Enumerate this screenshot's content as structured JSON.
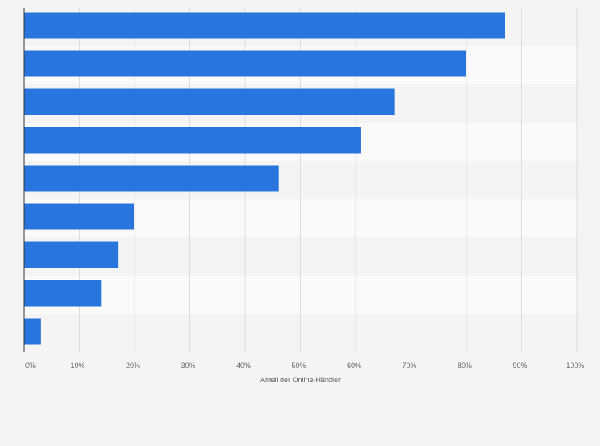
{
  "chart_data": {
    "type": "bar",
    "orientation": "horizontal",
    "categories": [
      "",
      "",
      "",
      "",
      "",
      "",
      "",
      "",
      ""
    ],
    "values": [
      87,
      80,
      67,
      61,
      46,
      20,
      17,
      14,
      3
    ],
    "unit": "%",
    "title": "",
    "xlabel": "Anteil der Online-Händler",
    "ylabel": "",
    "xlim": [
      0,
      100
    ],
    "xticks": [
      0,
      10,
      20,
      30,
      40,
      50,
      60,
      70,
      80,
      90,
      100
    ],
    "xtick_labels": [
      "0%",
      "10%",
      "20%",
      "30%",
      "40%",
      "50%",
      "60%",
      "70%",
      "80%",
      "90%",
      "100%"
    ],
    "grid": true,
    "legend": "none",
    "colors": {
      "bar": "#2876dd",
      "background": "#f4f4f4",
      "band_light": "#fafafa",
      "band_dark": "#f4f4f4",
      "grid": "#dddddd",
      "axis": "#333333",
      "text": "#666666"
    }
  }
}
